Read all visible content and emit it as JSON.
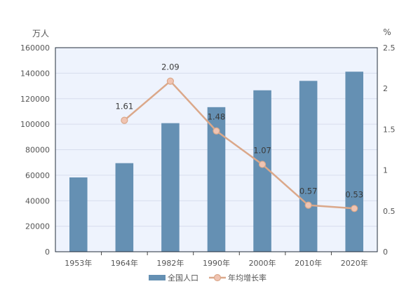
{
  "chart_data": {
    "type": "bar+line",
    "categories": [
      "1953年",
      "1964年",
      "1982年",
      "1990年",
      "2000年",
      "2010年",
      "2020年"
    ],
    "series": [
      {
        "name": "全国人口",
        "type": "bar",
        "axis": "left",
        "values": [
          58260,
          69458,
          100818,
          113368,
          126583,
          133972,
          141178
        ]
      },
      {
        "name": "年均增长率",
        "type": "line",
        "axis": "right",
        "values": [
          null,
          1.61,
          2.09,
          1.48,
          1.07,
          0.57,
          0.53
        ],
        "labels": [
          "",
          "1.61",
          "2.09",
          "1.48",
          "1.07",
          "0.57",
          "0.53"
        ]
      }
    ],
    "y_left": {
      "unit": "万人",
      "ylim": [
        0,
        160000
      ],
      "ticks": [
        "0",
        "20000",
        "40000",
        "60000",
        "80000",
        "100000",
        "120000",
        "140000",
        "160000"
      ]
    },
    "y_right": {
      "unit": "%",
      "ylim": [
        0,
        2.5
      ],
      "ticks": [
        "0",
        "0.5",
        "1",
        "1.5",
        "2",
        "2.5"
      ]
    },
    "grid": true,
    "legend_position": "bottom",
    "colors": {
      "bar": "#6590b3",
      "line": "#dba88a",
      "marker_fill": "#f0c4b2",
      "plot_bg": "#eef3fd",
      "grid": "#d7dded"
    }
  }
}
